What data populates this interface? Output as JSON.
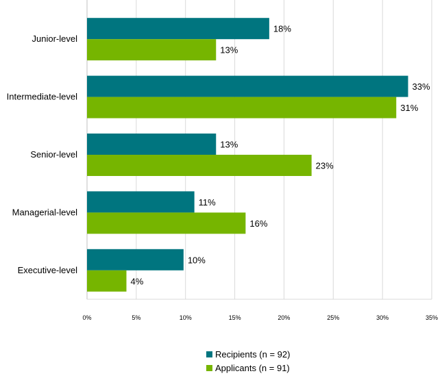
{
  "chart_data": {
    "type": "bar",
    "orientation": "horizontal",
    "title": "",
    "xlabel": "",
    "ylabel": "",
    "categories": [
      "Junior-level",
      "Intermediate-level",
      "Senior-level",
      "Managerial-level",
      "Executive-level"
    ],
    "series": [
      {
        "name": "Recipients (n = 92)",
        "color": "#00757F",
        "values": [
          18.5,
          32.6,
          13.1,
          10.9,
          9.8
        ],
        "labels": [
          "18%",
          "33%",
          "13%",
          "11%",
          "10%"
        ]
      },
      {
        "name": "Applicants (n = 91)",
        "color": "#76B500",
        "values": [
          13.1,
          31.4,
          22.8,
          16.1,
          4.0
        ],
        "labels": [
          "13%",
          "31%",
          "23%",
          "16%",
          "4%"
        ]
      }
    ],
    "xlim": [
      0,
      35
    ],
    "xticks": [
      0,
      5,
      10,
      15,
      20,
      25,
      30,
      35
    ],
    "xtick_labels": [
      "0%",
      "5%",
      "10%",
      "15%",
      "20%",
      "25%",
      "30%",
      "35%"
    ],
    "grid": true,
    "legend_position": "bottom"
  }
}
